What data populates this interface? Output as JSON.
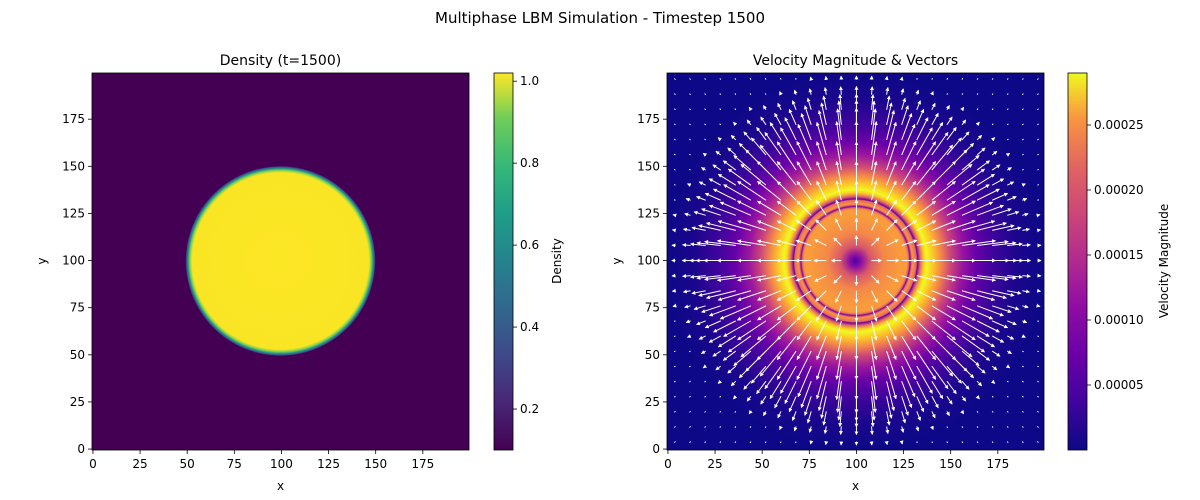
{
  "figure": {
    "suptitle": "Multiphase LBM Simulation - Timestep 1500"
  },
  "chart_data": [
    {
      "type": "heatmap",
      "title": "Density (t=1500)",
      "xlabel": "x",
      "ylabel": "y",
      "xlim": [
        0,
        199
      ],
      "ylim": [
        0,
        199
      ],
      "xticks": [
        0,
        25,
        50,
        75,
        100,
        125,
        150,
        175
      ],
      "yticks": [
        0,
        25,
        50,
        75,
        100,
        125,
        150,
        175
      ],
      "xtick_labels": [
        "0",
        "25",
        "50",
        "75",
        "100",
        "125",
        "150",
        "175"
      ],
      "ytick_labels": [
        "0",
        "25",
        "50",
        "75",
        "100",
        "125",
        "150",
        "175"
      ],
      "colormap": "viridis",
      "field": {
        "shape": "circular droplet",
        "center": [
          100,
          100
        ],
        "radius": 49,
        "inside_value": 1.0,
        "outside_value": 0.1
      },
      "colorbar": {
        "label": "Density",
        "range": [
          0.1,
          1.02
        ],
        "ticks": [
          0.2,
          0.4,
          0.6,
          0.8,
          1.0
        ],
        "tick_labels": [
          "0.2",
          "0.4",
          "0.6",
          "0.8",
          "1.0"
        ]
      },
      "grid": false
    },
    {
      "type": "heatmap",
      "title": "Velocity Magnitude & Vectors",
      "xlabel": "x",
      "ylabel": "y",
      "xlim": [
        0,
        199
      ],
      "ylim": [
        0,
        199
      ],
      "xticks": [
        0,
        25,
        50,
        75,
        100,
        125,
        150,
        175
      ],
      "yticks": [
        0,
        25,
        50,
        75,
        100,
        125,
        150,
        175
      ],
      "xtick_labels": [
        "0",
        "25",
        "50",
        "75",
        "100",
        "125",
        "150",
        "175"
      ],
      "ytick_labels": [
        "0",
        "25",
        "50",
        "75",
        "100",
        "125",
        "150",
        "175"
      ],
      "colormap": "plasma",
      "field": {
        "center": [
          100,
          100
        ],
        "max_magnitude": 0.00029,
        "peak_ring_radius": 57,
        "dark_rings_radii": [
          46.5,
          51.5
        ],
        "vectors": "radial, white arrows, sampled every 8 cells"
      },
      "colorbar": {
        "label": "Velocity Magnitude",
        "range": [
          0.0,
          0.00029
        ],
        "ticks": [
          5e-05,
          0.0001,
          0.00015,
          0.0002,
          0.00025
        ],
        "tick_labels": [
          "0.00005",
          "0.00010",
          "0.00015",
          "0.00020",
          "0.00025"
        ]
      },
      "grid": false
    }
  ]
}
